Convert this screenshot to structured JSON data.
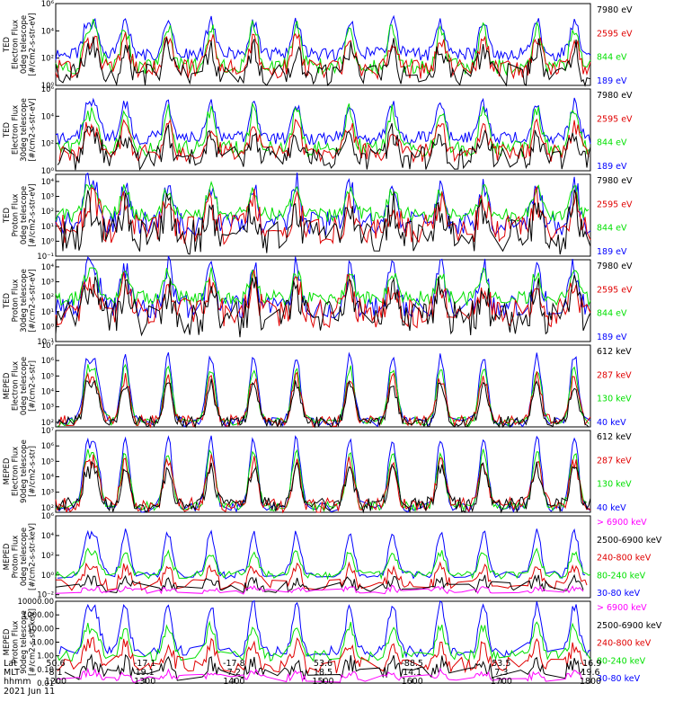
{
  "figure": {
    "date": "2021 Jun 11",
    "x_axis": {
      "row_labels": [
        "Lat",
        "MLT",
        "hhmm"
      ],
      "ticks": [
        {
          "lat": "50.6",
          "mlt": "8.1",
          "hhmm": "1200"
        },
        {
          "lat": "-17.1",
          "mlt": "19.1",
          "hhmm": "1300"
        },
        {
          "lat": "-17.8",
          "mlt": "7.2",
          "hhmm": "1400"
        },
        {
          "lat": "53.6",
          "mlt": "18.5",
          "hhmm": "1500"
        },
        {
          "lat": "-88.5",
          "mlt": "14.1",
          "hhmm": "1600"
        },
        {
          "lat": "53.5",
          "mlt": "7.3",
          "hhmm": "1700"
        },
        {
          "lat": "-16.9",
          "mlt": "19.6",
          "hhmm": "1800"
        }
      ]
    }
  },
  "chart_data": [
    {
      "type": "line",
      "panel": "TED electron 0deg",
      "ylabel_lines": [
        "TED",
        "Electron Flux",
        "0deg telescope",
        "[#/cm2-s-str-eV]"
      ],
      "yscale": "log",
      "ylim": [
        1,
        1000000
      ],
      "tick_labels": [
        {
          "v": 1,
          "t": "10⁰"
        },
        {
          "v": 100,
          "t": "10²"
        },
        {
          "v": 10000,
          "t": "10⁴"
        },
        {
          "v": 1000000,
          "t": "10⁶"
        }
      ],
      "series": [
        {
          "name": "7980 eV",
          "color": "#000000",
          "base": 5,
          "peak": 600,
          "noise": 0.9,
          "gate": 0.5
        },
        {
          "name": "2595 eV",
          "color": "#e00000",
          "base": 15,
          "peak": 3000,
          "noise": 0.7,
          "gate": 0.25
        },
        {
          "name": "844 eV",
          "color": "#00e000",
          "base": 25,
          "peak": 20000,
          "noise": 0.6,
          "gate": 0.1
        },
        {
          "name": "189 eV",
          "color": "#0000ff",
          "base": 200,
          "peak": 50000,
          "noise": 0.5,
          "gate": 0.0
        }
      ]
    },
    {
      "type": "line",
      "panel": "TED electron 30deg",
      "ylabel_lines": [
        "TED",
        "Electron Flux",
        "30deg telescope",
        "[#/cm2-s-str-eV]"
      ],
      "yscale": "log",
      "ylim": [
        1,
        1000000
      ],
      "tick_labels": [
        {
          "v": 1,
          "t": "10⁰"
        },
        {
          "v": 100,
          "t": "10²"
        },
        {
          "v": 10000,
          "t": "10⁴"
        },
        {
          "v": 1000000,
          "t": "10⁶"
        }
      ],
      "series": [
        {
          "name": "7980 eV",
          "color": "#000000",
          "base": 8,
          "peak": 500,
          "noise": 0.9,
          "gate": 0.5
        },
        {
          "name": "2595 eV",
          "color": "#e00000",
          "base": 20,
          "peak": 2000,
          "noise": 0.7,
          "gate": 0.25
        },
        {
          "name": "844 eV",
          "color": "#00e000",
          "base": 40,
          "peak": 30000,
          "noise": 0.6,
          "gate": 0.1
        },
        {
          "name": "189 eV",
          "color": "#0000ff",
          "base": 250,
          "peak": 80000,
          "noise": 0.5,
          "gate": 0.0
        }
      ]
    },
    {
      "type": "line",
      "panel": "TED proton 0deg",
      "ylabel_lines": [
        "TED",
        "Proton Flux",
        "0deg telescope",
        "[#/cm2-s-str-eV]"
      ],
      "yscale": "log",
      "ylim": [
        0.1,
        30000
      ],
      "tick_labels": [
        {
          "v": 0.1,
          "t": "10⁻¹"
        },
        {
          "v": 1,
          "t": "10⁰"
        },
        {
          "v": 10,
          "t": "10¹"
        },
        {
          "v": 100,
          "t": "10²"
        },
        {
          "v": 1000,
          "t": "10³"
        },
        {
          "v": 10000,
          "t": "10⁴"
        }
      ],
      "series": [
        {
          "name": "7980 eV",
          "color": "#000000",
          "base": 2,
          "peak": 200,
          "noise": 1.2,
          "gate": 0.45
        },
        {
          "name": "2595 eV",
          "color": "#e00000",
          "base": 6,
          "peak": 500,
          "noise": 1.0,
          "gate": 0.35
        },
        {
          "name": "844 eV",
          "color": "#00e000",
          "base": 60,
          "peak": 3000,
          "noise": 0.5,
          "gate": 0.2
        },
        {
          "name": "189 eV",
          "color": "#0000ff",
          "base": 15,
          "peak": 8000,
          "noise": 0.8,
          "gate": 0.3
        }
      ]
    },
    {
      "type": "line",
      "panel": "TED proton 30deg",
      "ylabel_lines": [
        "TED",
        "Proton Flux",
        "30deg telescope",
        "[#/cm2-s-str-eV]"
      ],
      "yscale": "log",
      "ylim": [
        0.1,
        30000
      ],
      "tick_labels": [
        {
          "v": 0.1,
          "t": "10⁻¹"
        },
        {
          "v": 1,
          "t": "10⁰"
        },
        {
          "v": 10,
          "t": "10¹"
        },
        {
          "v": 100,
          "t": "10²"
        },
        {
          "v": 1000,
          "t": "10³"
        },
        {
          "v": 10000,
          "t": "10⁴"
        }
      ],
      "series": [
        {
          "name": "7980 eV",
          "color": "#000000",
          "base": 3,
          "peak": 300,
          "noise": 1.2,
          "gate": 0.45
        },
        {
          "name": "2595 eV",
          "color": "#e00000",
          "base": 8,
          "peak": 700,
          "noise": 1.0,
          "gate": 0.35
        },
        {
          "name": "844 eV",
          "color": "#00e000",
          "base": 80,
          "peak": 4000,
          "noise": 0.5,
          "gate": 0.15
        },
        {
          "name": "189 eV",
          "color": "#0000ff",
          "base": 20,
          "peak": 10000,
          "noise": 0.8,
          "gate": 0.3
        }
      ]
    },
    {
      "type": "line",
      "panel": "MEPED electron 0deg",
      "ylabel_lines": [
        "MEPED",
        "Electron Flux",
        "0deg telescope",
        "[#/cm2-s-str]"
      ],
      "yscale": "log",
      "ylim": [
        50,
        10000000
      ],
      "tick_labels": [
        {
          "v": 100,
          "t": "10²"
        },
        {
          "v": 1000,
          "t": "10³"
        },
        {
          "v": 10000,
          "t": "10⁴"
        },
        {
          "v": 100000,
          "t": "10⁵"
        },
        {
          "v": 1000000,
          "t": "10⁶"
        },
        {
          "v": 10000000,
          "t": "10⁷"
        }
      ],
      "series": [
        {
          "name": "612 keV",
          "color": "#000000",
          "base": 100,
          "peak": 30000,
          "noise": 0.4,
          "gate": 0.3
        },
        {
          "name": "287 keV",
          "color": "#e00000",
          "base": 120,
          "peak": 80000,
          "noise": 0.4,
          "gate": 0.2
        },
        {
          "name": "130 keV",
          "color": "#00e000",
          "base": 110,
          "peak": 300000,
          "noise": 0.3,
          "gate": 0.4
        },
        {
          "name": "40 keV",
          "color": "#0000ff",
          "base": 100,
          "peak": 2000000,
          "noise": 0.3,
          "gate": 0.5
        }
      ]
    },
    {
      "type": "line",
      "panel": "MEPED electron 90deg",
      "ylabel_lines": [
        "MEPED",
        "Electron Flux",
        "90deg telescope",
        "[#/cm2-s-str]"
      ],
      "yscale": "log",
      "ylim": [
        50,
        10000000
      ],
      "tick_labels": [
        {
          "v": 100,
          "t": "10²"
        },
        {
          "v": 1000,
          "t": "10³"
        },
        {
          "v": 10000,
          "t": "10⁴"
        },
        {
          "v": 100000,
          "t": "10⁵"
        },
        {
          "v": 1000000,
          "t": "10⁶"
        },
        {
          "v": 10000000,
          "t": "10⁷"
        }
      ],
      "series": [
        {
          "name": "612 keV",
          "color": "#000000",
          "base": 150,
          "peak": 40000,
          "noise": 0.5,
          "gate": 0.2
        },
        {
          "name": "287 keV",
          "color": "#e00000",
          "base": 150,
          "peak": 100000,
          "noise": 0.5,
          "gate": 0.2
        },
        {
          "name": "130 keV",
          "color": "#00e000",
          "base": 120,
          "peak": 400000,
          "noise": 0.3,
          "gate": 0.3
        },
        {
          "name": "40 keV",
          "color": "#0000ff",
          "base": 100,
          "peak": 3000000,
          "noise": 0.3,
          "gate": 0.5
        }
      ]
    },
    {
      "type": "line",
      "panel": "MEPED proton 0deg",
      "ylabel_lines": [
        "MEPED",
        "Proton Flux",
        "0deg telescope",
        "[#/cm2-s-str-keV]"
      ],
      "yscale": "log",
      "ylim": [
        0.005,
        1000000
      ],
      "tick_labels": [
        {
          "v": 0.01,
          "t": "10⁻²"
        },
        {
          "v": 1,
          "t": "10⁰"
        },
        {
          "v": 100,
          "t": "10²"
        },
        {
          "v": 10000,
          "t": "10⁴"
        },
        {
          "v": 1000000,
          "t": "10⁶"
        }
      ],
      "series": [
        {
          "name": "> 6900 keV",
          "color": "#ff00ff",
          "base": 0.02,
          "peak": 0.05,
          "noise": 0.3,
          "gate": 0.9
        },
        {
          "name": "2500-6900 keV",
          "color": "#000000",
          "base": 0.05,
          "peak": 0.3,
          "noise": 0.6,
          "gate": 0.9
        },
        {
          "name": "240-800 keV",
          "color": "#e00000",
          "base": 0.1,
          "peak": 5,
          "noise": 0.6,
          "gate": 0.7
        },
        {
          "name": "80-240 keV",
          "color": "#00e000",
          "base": 1,
          "peak": 200,
          "noise": 0.4,
          "gate": 0.5
        },
        {
          "name": "30-80 keV",
          "color": "#0000ff",
          "base": 1,
          "peak": 20000,
          "noise": 0.4,
          "gate": 0.6
        }
      ]
    },
    {
      "type": "line",
      "panel": "MEPED proton 90deg",
      "ylabel_lines": [
        "MEPED",
        "Proton Flux",
        "90deg telescope",
        "[#/cm2-s-str-keV]"
      ],
      "yscale": "log",
      "ylim": [
        0.01,
        10000
      ],
      "tick_labels": [
        {
          "v": 0.01,
          "t": "0.01"
        },
        {
          "v": 0.1,
          "t": "0.10"
        },
        {
          "v": 1,
          "t": "1.00"
        },
        {
          "v": 10,
          "t": "10.00"
        },
        {
          "v": 100,
          "t": "100.00"
        },
        {
          "v": 1000,
          "t": "1000.00"
        },
        {
          "v": 10000,
          "t": "10000.00"
        }
      ],
      "series": [
        {
          "name": "> 6900 keV",
          "color": "#ff00ff",
          "base": 0.02,
          "peak": 0.06,
          "noise": 0.3,
          "gate": 0.9
        },
        {
          "name": "2500-6900 keV",
          "color": "#000000",
          "base": 0.05,
          "peak": 0.3,
          "noise": 0.6,
          "gate": 0.9
        },
        {
          "name": "240-800 keV",
          "color": "#e00000",
          "base": 0.2,
          "peak": 6,
          "noise": 0.6,
          "gate": 0.6
        },
        {
          "name": "80-240 keV",
          "color": "#00e000",
          "base": 1,
          "peak": 150,
          "noise": 0.4,
          "gate": 0.5
        },
        {
          "name": "30-80 keV",
          "color": "#0000ff",
          "base": 2,
          "peak": 5000,
          "noise": 0.4,
          "gate": 0.5
        }
      ]
    }
  ]
}
